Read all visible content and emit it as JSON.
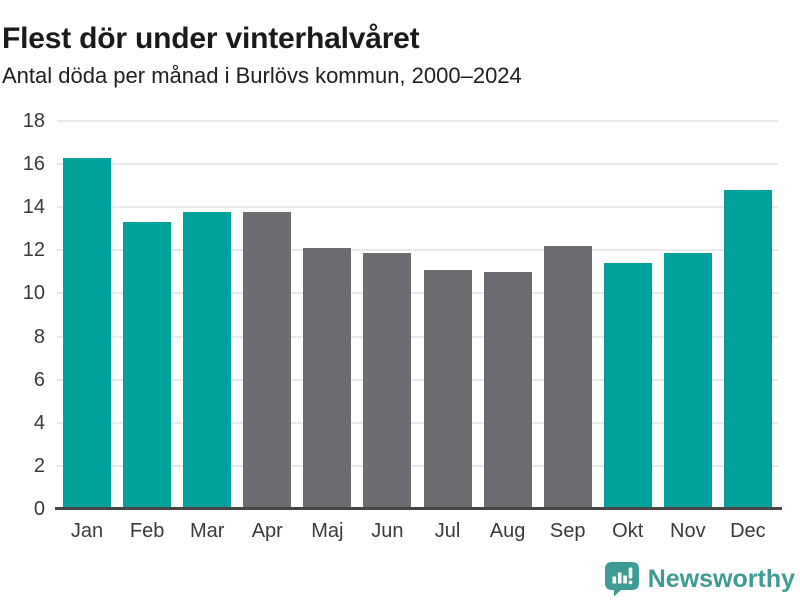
{
  "header": {
    "title": "Flest dör under vinterhalvåret",
    "subtitle": "Antal döda per månad i Burlövs kommun, 2000–2024"
  },
  "chart_data": {
    "type": "bar",
    "title": "Flest dör under vinterhalvåret",
    "subtitle": "Antal döda per månad i Burlövs kommun, 2000–2024",
    "categories": [
      "Jan",
      "Feb",
      "Mar",
      "Apr",
      "Maj",
      "Jun",
      "Jul",
      "Aug",
      "Sep",
      "Okt",
      "Nov",
      "Dec"
    ],
    "values": [
      16.3,
      13.3,
      13.8,
      13.8,
      12.1,
      11.9,
      11.1,
      11.0,
      12.2,
      11.4,
      11.9,
      14.8
    ],
    "bar_color_keys": [
      "highlight",
      "highlight",
      "highlight",
      "muted",
      "muted",
      "muted",
      "muted",
      "muted",
      "muted",
      "highlight",
      "highlight",
      "highlight"
    ],
    "palette": {
      "highlight": "#00A19A",
      "muted": "#6D6D71"
    },
    "highlighted_categories": [
      "Jan",
      "Feb",
      "Mar",
      "Okt",
      "Nov",
      "Dec"
    ],
    "xlabel": "",
    "ylabel": "",
    "ylim": [
      0,
      18
    ],
    "yticks": [
      0,
      2,
      4,
      6,
      8,
      10,
      12,
      14,
      16,
      18
    ],
    "grid": "horizontal",
    "legend": "none",
    "colors": {
      "gridline": "#E9E9E9",
      "axis_line": "#464646"
    }
  },
  "footer": {
    "brand": "Newsworthy",
    "brand_color": "#3E9C94",
    "logo_icon": "bar-chart-speech-bubble-icon"
  }
}
